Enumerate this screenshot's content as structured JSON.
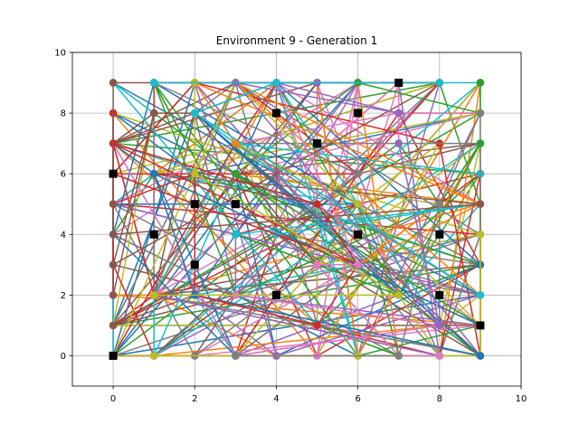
{
  "chart_data": {
    "type": "line",
    "title": "Environment 9 - Generation 1",
    "xlabel": "",
    "ylabel": "",
    "xlim": [
      -1,
      10
    ],
    "ylim": [
      -1,
      10
    ],
    "xticks": [
      "0",
      "2",
      "4",
      "6",
      "8",
      "10"
    ],
    "yticks": [
      "0",
      "2",
      "4",
      "6",
      "8",
      "10"
    ],
    "grid": true,
    "palette": [
      "#1f77b4",
      "#ff7f0e",
      "#2ca02c",
      "#d62728",
      "#9467bd",
      "#8c564b",
      "#e377c2",
      "#7f7f7f",
      "#bcbd22",
      "#17becf"
    ],
    "marker_color": "#000000",
    "markers": [
      {
        "x": 0,
        "y": 0
      },
      {
        "x": 0,
        "y": 6
      },
      {
        "x": 1,
        "y": 4
      },
      {
        "x": 2,
        "y": 3
      },
      {
        "x": 2,
        "y": 5
      },
      {
        "x": 3,
        "y": 5
      },
      {
        "x": 4,
        "y": 2
      },
      {
        "x": 4,
        "y": 8
      },
      {
        "x": 5,
        "y": 7
      },
      {
        "x": 6,
        "y": 4
      },
      {
        "x": 6,
        "y": 8
      },
      {
        "x": 7,
        "y": 9
      },
      {
        "x": 8,
        "y": 2
      },
      {
        "x": 8,
        "y": 4
      },
      {
        "x": 9,
        "y": 1
      }
    ],
    "route_points": [
      [
        0,
        0
      ],
      [
        1,
        0
      ],
      [
        2,
        0
      ],
      [
        3,
        0
      ],
      [
        4,
        0
      ],
      [
        5,
        0
      ],
      [
        6,
        0
      ],
      [
        7,
        0
      ],
      [
        8,
        0
      ],
      [
        9,
        0
      ],
      [
        0,
        1
      ],
      [
        9,
        1
      ],
      [
        0,
        2
      ],
      [
        9,
        2
      ],
      [
        0,
        3
      ],
      [
        9,
        3
      ],
      [
        0,
        4
      ],
      [
        9,
        4
      ],
      [
        0,
        5
      ],
      [
        9,
        5
      ],
      [
        0,
        6
      ],
      [
        9,
        6
      ],
      [
        0,
        7
      ],
      [
        9,
        7
      ],
      [
        0,
        8
      ],
      [
        9,
        8
      ],
      [
        0,
        9
      ],
      [
        1,
        9
      ],
      [
        2,
        9
      ],
      [
        3,
        9
      ],
      [
        4,
        9
      ],
      [
        5,
        9
      ],
      [
        6,
        9
      ],
      [
        7,
        9
      ],
      [
        8,
        9
      ],
      [
        9,
        9
      ],
      [
        1,
        8
      ],
      [
        2,
        8
      ],
      [
        3,
        7
      ],
      [
        8,
        7
      ],
      [
        1,
        6
      ],
      [
        2,
        2
      ],
      [
        3,
        2
      ],
      [
        5,
        3
      ],
      [
        6,
        5
      ],
      [
        7,
        8
      ],
      [
        8,
        1
      ],
      [
        7,
        2
      ],
      [
        5,
        1
      ],
      [
        4,
        6
      ],
      [
        1,
        2
      ],
      [
        2,
        6
      ],
      [
        3,
        6
      ],
      [
        5,
        5
      ],
      [
        6,
        3
      ],
      [
        7,
        7
      ],
      [
        8,
        5
      ],
      [
        4,
        4
      ],
      [
        6,
        6
      ],
      [
        3,
        4
      ]
    ],
    "route_count": 110,
    "route_seed": 9
  }
}
